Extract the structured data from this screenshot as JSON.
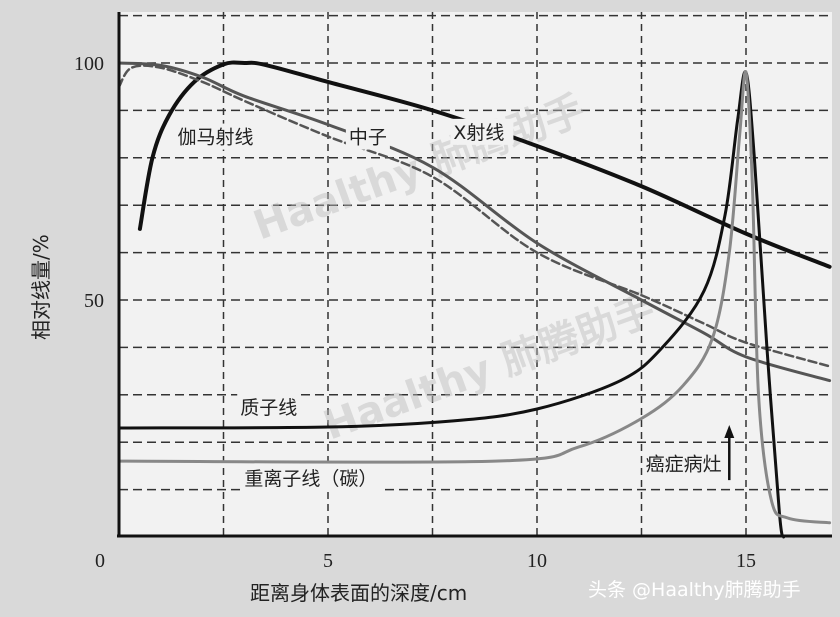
{
  "chart_data": {
    "type": "line",
    "title": "",
    "xlabel": "距离身体表面的深度/cm",
    "ylabel": "相对线量/%",
    "xlim": [
      0,
      17
    ],
    "ylim": [
      0,
      110
    ],
    "xticks": [
      0,
      5,
      10,
      15
    ],
    "xtick_labels": [
      "0",
      "5",
      "10",
      "15"
    ],
    "yticks": [
      50,
      100
    ],
    "ytick_labels": [
      "50",
      "100"
    ],
    "grid": {
      "on": true,
      "style": "dashed",
      "x_step": 2.5,
      "y_step": 10
    },
    "legend": "none",
    "series": [
      {
        "color": "#111111",
        "style": "solid-thick",
        "x": [
          0.5,
          0.8,
          1.2,
          1.8,
          2.5,
          3,
          3.5,
          5,
          7.5,
          10,
          12.5,
          15,
          17
        ],
        "y": [
          65,
          80,
          89,
          96,
          99.7,
          100,
          99.6,
          96,
          90,
          82.5,
          74,
          64,
          57
        ]
      },
      {
        "color": "#555555",
        "style": "solid",
        "x": [
          0,
          1,
          2,
          3,
          5,
          7.5,
          10,
          12.5,
          14,
          15,
          17
        ],
        "y": [
          100,
          99.5,
          97,
          93,
          87,
          78,
          62,
          50,
          43,
          38,
          33
        ]
      },
      {
        "color": "#555555",
        "style": "dashed",
        "x": [
          0,
          0.3,
          1,
          2,
          3,
          5,
          7.5,
          10,
          12.5,
          14,
          15,
          17
        ],
        "y": [
          95,
          99,
          99,
          96,
          92,
          84.5,
          76,
          60,
          51,
          45,
          41,
          36
        ]
      },
      {
        "color": "#111111",
        "style": "solid",
        "x": [
          0,
          5,
          8,
          10,
          12,
          13,
          14,
          14.5,
          14.8,
          15,
          15.2,
          15.5,
          15.8,
          15.9
        ],
        "y": [
          23,
          23.2,
          24.5,
          27,
          33,
          40,
          52,
          68,
          88,
          98,
          80,
          40,
          5,
          0
        ]
      },
      {
        "color": "#888888",
        "style": "solid",
        "x": [
          0,
          9,
          11,
          12.5,
          13.5,
          14.2,
          14.6,
          14.85,
          15,
          15.15,
          15.3,
          15.6,
          16,
          17
        ],
        "y": [
          16,
          16,
          19,
          25,
          32,
          42,
          60,
          85,
          98,
          75,
          30,
          8,
          4,
          3
        ]
      }
    ],
    "annotations": [
      {
        "text": "伽马射线",
        "x": 1.4,
        "y": 83
      },
      {
        "text": "中子",
        "x": 5.5,
        "y": 83
      },
      {
        "text": "X射线",
        "x": 8.0,
        "y": 84
      },
      {
        "text": "质子线",
        "x": 2.9,
        "y": 26
      },
      {
        "text": "重离子线（碳）",
        "x": 3.0,
        "y": 11
      },
      {
        "text": "癌症病灶",
        "x": 12.6,
        "y": 14
      }
    ],
    "arrow": {
      "x": 14.6,
      "from_y": 12,
      "to_y": 23
    }
  },
  "watermark": "Haalthy 肺腾助手",
  "credit": "头条 @Haalthy肺腾助手"
}
